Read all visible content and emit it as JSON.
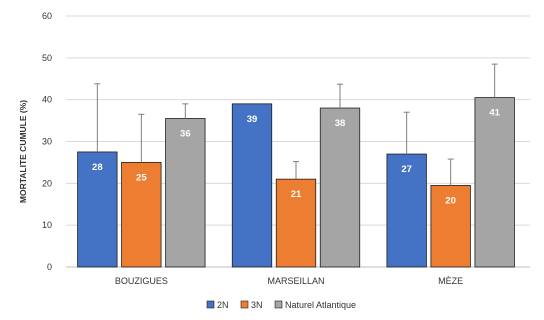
{
  "chart_data": {
    "type": "bar",
    "title": "",
    "xlabel": "",
    "ylabel": "MORTALITE CUMULE (%)",
    "ylim": [
      0,
      60
    ],
    "yticks": [
      0,
      10,
      20,
      30,
      40,
      50,
      60
    ],
    "grid": true,
    "legend_position": "bottom",
    "categories": [
      "BOUZIGUES",
      "MARSEILLAN",
      "MÈZE"
    ],
    "series": [
      {
        "name": "2N",
        "color": "#4472C4",
        "values": [
          27.5,
          39,
          27
        ],
        "labels": [
          "28",
          "39",
          "27"
        ],
        "error_upper": [
          43.8,
          39,
          37
        ]
      },
      {
        "name": "3N",
        "color": "#ED7D31",
        "values": [
          25,
          21,
          19.5
        ],
        "labels": [
          "25",
          "21",
          "20"
        ],
        "error_upper": [
          36.5,
          25.2,
          25.8
        ]
      },
      {
        "name": "Naturel Atlantique",
        "color": "#A5A5A5",
        "values": [
          35.5,
          38,
          40.5
        ],
        "labels": [
          "36",
          "38",
          "41"
        ],
        "error_upper": [
          39,
          43.7,
          48.5
        ]
      }
    ]
  }
}
